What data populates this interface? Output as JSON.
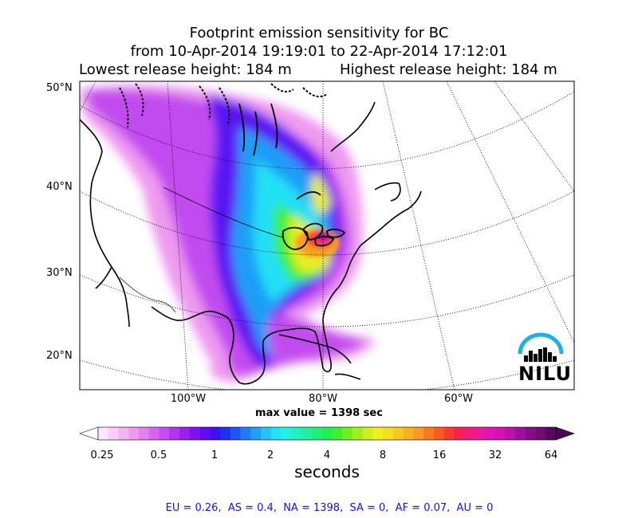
{
  "title": {
    "line1": "Footprint emission sensitivity for BC",
    "line2": "from 10-Apr-2014 19:19:01 to 22-Apr-2014 17:12:01",
    "lowest": "Lowest release height: 184 m",
    "highest": "Highest release height: 184 m"
  },
  "map": {
    "lat_labels": [
      "50°N",
      "40°N",
      "30°N",
      "20°N"
    ],
    "lon_labels": [
      "100°W",
      "80°W",
      "60°W"
    ],
    "max_value": "max value = 1398 sec",
    "logo_text": "NILU",
    "logo_color": "#1ab0e8"
  },
  "colorbar": {
    "ticks": [
      "0.25",
      "0.5",
      "1",
      "2",
      "4",
      "8",
      "16",
      "32",
      "64"
    ],
    "unit": "seconds",
    "colors": [
      "#fde6fd",
      "#f8cef8",
      "#f2b4f3",
      "#ec9aee",
      "#e47ff0",
      "#d865f2",
      "#c84cf0",
      "#b233ef",
      "#9a1ff0",
      "#7f12f0",
      "#5f0cf2",
      "#4010f2",
      "#2030f0",
      "#1c55f4",
      "#1f7af6",
      "#20a0f8",
      "#22c4fa",
      "#22e0f6",
      "#22f0e0",
      "#22f0c0",
      "#20f0a0",
      "#20f078",
      "#20f050",
      "#40f030",
      "#70f020",
      "#a0f020",
      "#ccf020",
      "#f0f020",
      "#f4e020",
      "#f6c820",
      "#f8b020",
      "#fa9820",
      "#fa7a20",
      "#fa5a22",
      "#fa3a30",
      "#f82050",
      "#f41c78",
      "#ee189c",
      "#e414b4",
      "#d412b8",
      "#bc10b0",
      "#a00e9c",
      "#880c88",
      "#700a74",
      "#5a0860"
    ],
    "under_color": "#ffffff",
    "over_color": "#4a0850"
  },
  "regions_text": "EU = 0.26,  AS = 0.4,  NA = 1398,  SA = 0,  AF = 0.07,  AU = 0"
}
